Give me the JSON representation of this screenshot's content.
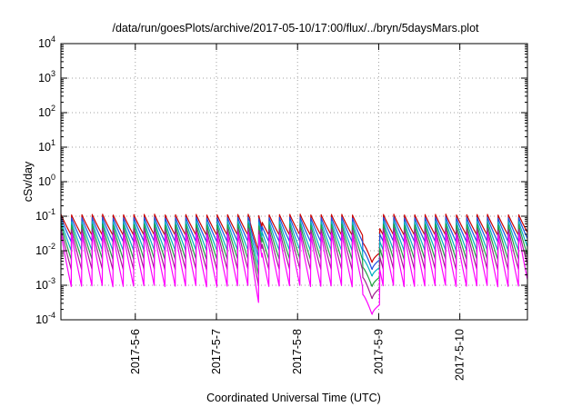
{
  "chart_data": {
    "type": "line",
    "title": "/data/run/goesPlots/archive/2017-05-10/17:00/flux/../bryn/5daysMars.plot",
    "xlabel": "Coordinated Universal Time (UTC)",
    "ylabel": "cSv/day",
    "yscale": "log",
    "ylim": [
      0.0001,
      10000
    ],
    "xlim": [
      "2017-05-05 02:00",
      "2017-05-10 20:00"
    ],
    "y_ticks": [
      {
        "base": "10",
        "exp": "-4"
      },
      {
        "base": "10",
        "exp": "-3"
      },
      {
        "base": "10",
        "exp": "-2"
      },
      {
        "base": "10",
        "exp": "-1"
      },
      {
        "base": "10",
        "exp": "0"
      },
      {
        "base": "10",
        "exp": "1"
      },
      {
        "base": "10",
        "exp": "2"
      },
      {
        "base": "10",
        "exp": "3"
      },
      {
        "base": "10",
        "exp": "4"
      }
    ],
    "x_ticks": [
      "2017-5-6",
      "2017-5-7",
      "2017-5-8",
      "2017-5-9",
      "2017-5-10"
    ],
    "grid": true,
    "legend": "none",
    "series": [
      {
        "color": "#cc0000",
        "peak": 0.115,
        "trough": 0.028,
        "dip_min": 0.0045
      },
      {
        "color": "#2050e0",
        "peak": 0.095,
        "trough": 0.018,
        "dip_min": 0.0028
      },
      {
        "color": "#00b0c0",
        "peak": 0.075,
        "trough": 0.01,
        "dip_min": 0.0018
      },
      {
        "color": "#20a040",
        "peak": 0.06,
        "trough": 0.0055,
        "dip_min": 0.0009
      },
      {
        "color": "#a02090",
        "peak": 0.045,
        "trough": 0.0028,
        "dip_min": 0.0004
      },
      {
        "color": "#ff00ff",
        "peak": 0.035,
        "trough": 0.0009,
        "dip_min": 0.00014
      }
    ]
  }
}
